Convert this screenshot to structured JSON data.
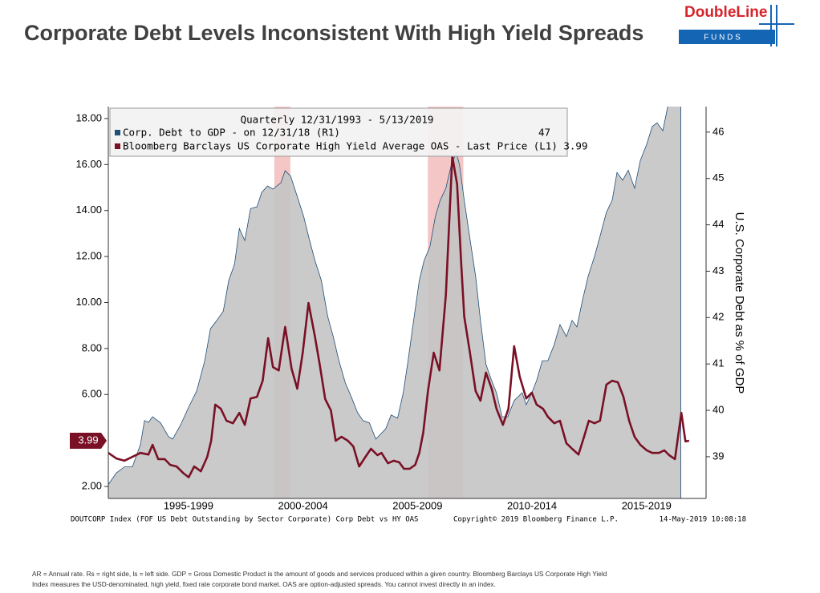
{
  "header": {
    "title": "Corporate Debt Levels Inconsistent With High Yield Spreads",
    "logo_name": "DoubleLine",
    "logo_sub": "F U N D S"
  },
  "chart_data": {
    "type": "area-line",
    "legend_title": "Quarterly 12/31/1993 - 5/13/2019",
    "y2_label": "U.S. Corporate Debt as % of GDP",
    "xlim": [
      1994,
      2020.1
    ],
    "xticks": [
      {
        "value": 1997.5,
        "label": "1995-1999"
      },
      {
        "value": 2002.5,
        "label": "2000-2004"
      },
      {
        "value": 2007.5,
        "label": "2005-2009"
      },
      {
        "value": 2012.5,
        "label": "2010-2014"
      },
      {
        "value": 2017.5,
        "label": "2015-2019"
      }
    ],
    "ylim": [
      1.48,
      18.52
    ],
    "yticks": [
      {
        "value": 2,
        "label": "2.00"
      },
      {
        "value": 6,
        "label": "6.00"
      },
      {
        "value": 8,
        "label": "8.00"
      },
      {
        "value": 10,
        "label": "10.00"
      },
      {
        "value": 12,
        "label": "12.00"
      },
      {
        "value": 14,
        "label": "14.00"
      },
      {
        "value": 16,
        "label": "16.00"
      },
      {
        "value": 18,
        "label": "18.00"
      }
    ],
    "y2lim": [
      38.1,
      46.55
    ],
    "y2ticks": [
      39,
      40,
      41,
      42,
      43,
      44,
      45,
      46
    ],
    "shaded_periods": [
      [
        2001.25,
        2001.95
      ],
      [
        2007.95,
        2009.5
      ]
    ],
    "series": [
      {
        "name": "Corp. Debt to GDP - on 12/31/18 (R1)",
        "color": "#1f4e79",
        "fill": "#c4c4c4",
        "axis": "y2",
        "last_value": 47,
        "x": [
          1994.0,
          1994.35,
          1994.7,
          1995.05,
          1995.4,
          1995.58,
          1995.75,
          1995.93,
          1996.28,
          1996.63,
          1996.81,
          1997.16,
          1997.51,
          1997.86,
          1998.21,
          1998.46,
          1998.74,
          1999.02,
          1999.26,
          1999.51,
          1999.72,
          1999.96,
          2000.21,
          2000.49,
          2000.7,
          2000.95,
          2001.19,
          2001.54,
          2001.72,
          2001.96,
          2002.25,
          2002.53,
          2002.77,
          2003.02,
          2003.3,
          2003.58,
          2003.82,
          2004.07,
          2004.35,
          2004.6,
          2004.88,
          2005.12,
          2005.4,
          2005.68,
          2006.11,
          2006.35,
          2006.63,
          2006.88,
          2007.09,
          2007.33,
          2007.58,
          2007.79,
          2008.04,
          2008.28,
          2008.49,
          2008.74,
          2008.98,
          2009.19,
          2009.33,
          2009.54,
          2009.79,
          2010.04,
          2010.25,
          2010.49,
          2010.74,
          2010.95,
          2011.19,
          2011.44,
          2011.72,
          2012.07,
          2012.25,
          2012.49,
          2012.7,
          2012.95,
          2013.19,
          2013.47,
          2013.72,
          2014.0,
          2014.25,
          2014.46,
          2014.7,
          2014.95,
          2015.23,
          2015.47,
          2015.75,
          2016.0,
          2016.21,
          2016.46,
          2016.7,
          2016.98,
          2017.23,
          2017.51,
          2017.75,
          2017.96,
          2018.21,
          2018.49,
          2019.0
        ],
        "values": [
          38.4,
          38.65,
          38.78,
          38.78,
          39.26,
          39.78,
          39.74,
          39.86,
          39.73,
          39.43,
          39.38,
          39.69,
          40.07,
          40.42,
          41.07,
          41.76,
          41.94,
          42.14,
          42.8,
          43.15,
          43.92,
          43.66,
          44.35,
          44.39,
          44.7,
          44.84,
          44.77,
          44.91,
          45.17,
          45.05,
          44.61,
          44.18,
          43.7,
          43.23,
          42.8,
          42.02,
          41.59,
          41.07,
          40.59,
          40.3,
          39.95,
          39.78,
          39.73,
          39.38,
          39.6,
          39.9,
          39.83,
          40.38,
          41.07,
          41.94,
          42.8,
          43.23,
          43.53,
          44.18,
          44.53,
          44.79,
          45.3,
          45.56,
          45.3,
          44.53,
          43.7,
          42.89,
          41.94,
          40.99,
          40.64,
          40.38,
          39.86,
          39.86,
          40.21,
          40.38,
          40.12,
          40.38,
          40.64,
          41.07,
          41.07,
          41.42,
          41.85,
          41.59,
          41.94,
          41.8,
          42.37,
          42.89,
          43.32,
          43.75,
          44.27,
          44.53,
          45.13,
          44.96,
          45.18,
          44.79,
          45.39,
          45.74,
          46.12,
          46.2,
          46.03,
          46.7,
          47
        ]
      },
      {
        "name": "Bloomberg Barclays US Corporate High Yield Average OAS - Last Price (L1) 3.99",
        "color": "#7a1025",
        "axis": "y",
        "last_value": 3.99,
        "x": [
          1994.0,
          1994.35,
          1994.7,
          1995.05,
          1995.4,
          1995.75,
          1995.93,
          1996.18,
          1996.46,
          1996.7,
          1996.98,
          1997.26,
          1997.51,
          1997.75,
          1998.04,
          1998.32,
          1998.49,
          1998.67,
          1998.91,
          1999.16,
          1999.44,
          1999.72,
          1999.96,
          2000.21,
          2000.49,
          2000.74,
          2000.98,
          2001.19,
          2001.44,
          2001.72,
          2002.0,
          2002.25,
          2002.49,
          2002.74,
          2003.02,
          2003.23,
          2003.47,
          2003.72,
          2003.93,
          2004.18,
          2004.46,
          2004.7,
          2004.95,
          2005.23,
          2005.47,
          2005.75,
          2005.93,
          2006.21,
          2006.46,
          2006.7,
          2006.91,
          2007.16,
          2007.4,
          2007.58,
          2007.75,
          2007.96,
          2008.21,
          2008.46,
          2008.74,
          2008.91,
          2009.02,
          2009.23,
          2009.4,
          2009.54,
          2009.79,
          2010.04,
          2010.25,
          2010.49,
          2010.74,
          2010.95,
          2011.23,
          2011.47,
          2011.72,
          2011.96,
          2012.25,
          2012.49,
          2012.7,
          2012.98,
          2013.19,
          2013.47,
          2013.72,
          2014.0,
          2014.25,
          2014.53,
          2014.77,
          2014.98,
          2015.23,
          2015.47,
          2015.75,
          2016.0,
          2016.25,
          2016.49,
          2016.74,
          2016.98,
          2017.23,
          2017.51,
          2017.75,
          2018.04,
          2018.28,
          2018.49,
          2018.74,
          2019.02,
          2019.2,
          2019.36
        ],
        "values": [
          3.46,
          3.22,
          3.12,
          3.29,
          3.46,
          3.39,
          3.81,
          3.19,
          3.19,
          2.94,
          2.87,
          2.59,
          2.4,
          2.87,
          2.66,
          3.29,
          3.99,
          5.56,
          5.38,
          4.86,
          4.75,
          5.2,
          4.68,
          5.83,
          5.9,
          6.6,
          8.45,
          7.19,
          7.05,
          8.94,
          7.12,
          6.25,
          7.82,
          9.98,
          8.52,
          7.3,
          5.8,
          5.31,
          3.99,
          4.16,
          3.99,
          3.74,
          2.87,
          3.29,
          3.64,
          3.36,
          3.46,
          3.01,
          3.12,
          3.05,
          2.77,
          2.77,
          2.94,
          3.46,
          4.34,
          6.18,
          7.82,
          7.05,
          10.33,
          14.02,
          16.36,
          15.14,
          11.83,
          9.39,
          7.82,
          6.15,
          5.73,
          6.95,
          6.25,
          5.38,
          4.68,
          5.38,
          8.1,
          6.78,
          5.83,
          6.08,
          5.56,
          5.38,
          5.03,
          4.75,
          4.86,
          3.88,
          3.64,
          3.39,
          4.16,
          4.86,
          4.75,
          4.86,
          6.43,
          6.6,
          6.53,
          5.9,
          4.86,
          4.16,
          3.81,
          3.57,
          3.46,
          3.46,
          3.57,
          3.36,
          3.19,
          5.2,
          3.96,
          3.99
        ]
      }
    ]
  },
  "footer": {
    "source": "DOUTCORP Index (FOF US Debt Outstanding by Sector Corporate) Corp Debt vs HY OAS",
    "copyright": "Copyright© 2019 Bloomberg Finance L.P.",
    "timestamp": "14-May-2019 10:08:18"
  },
  "footnote": [
    "AR = Annual rate. Rs = right side, ls = left side. GDP = Gross Domestic Product is the amount of goods and services produced within a given country. Bloomberg Barclays US Corporate High Yield",
    "Index measures the USD-denominated, high yield, fixed rate corporate bond market. OAS are option-adjusted spreads. You cannot invest directly in an index."
  ]
}
